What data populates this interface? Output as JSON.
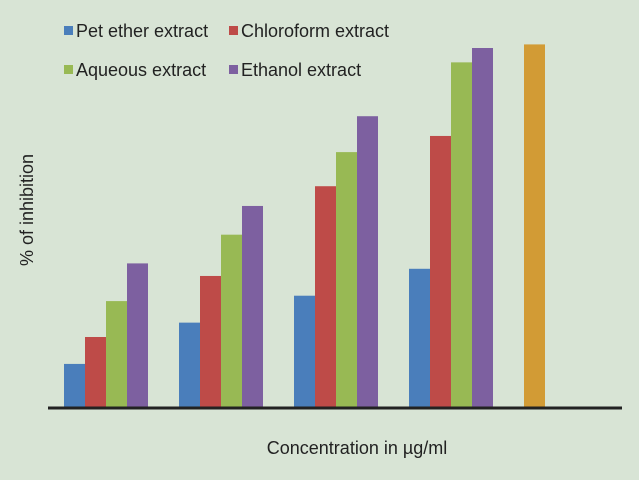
{
  "chart_data": {
    "type": "bar",
    "title": "",
    "xlabel": "Concentration in µg/ml",
    "ylabel": "% of inhibition",
    "categories": [
      "",
      "",
      "",
      "",
      ""
    ],
    "ylim": [
      0,
      100
    ],
    "grid": false,
    "legend_position": "top-left",
    "series": [
      {
        "name": "Pet ether extract",
        "color": "#4a7ebb",
        "values": [
          12,
          23.5,
          31,
          38.5,
          null
        ]
      },
      {
        "name": "Chloroform extract",
        "color": "#be4b48",
        "values": [
          19.5,
          36.5,
          61.5,
          75.5,
          null
        ]
      },
      {
        "name": "Aqueous extract",
        "color": "#98b954",
        "values": [
          29.5,
          48,
          71,
          96,
          null
        ]
      },
      {
        "name": "Ethanol extract",
        "color": "#7d60a0",
        "values": [
          40,
          56,
          81,
          100,
          null
        ]
      },
      {
        "name": "",
        "color": "#d29b35",
        "values": [
          null,
          null,
          null,
          null,
          101
        ]
      }
    ]
  }
}
